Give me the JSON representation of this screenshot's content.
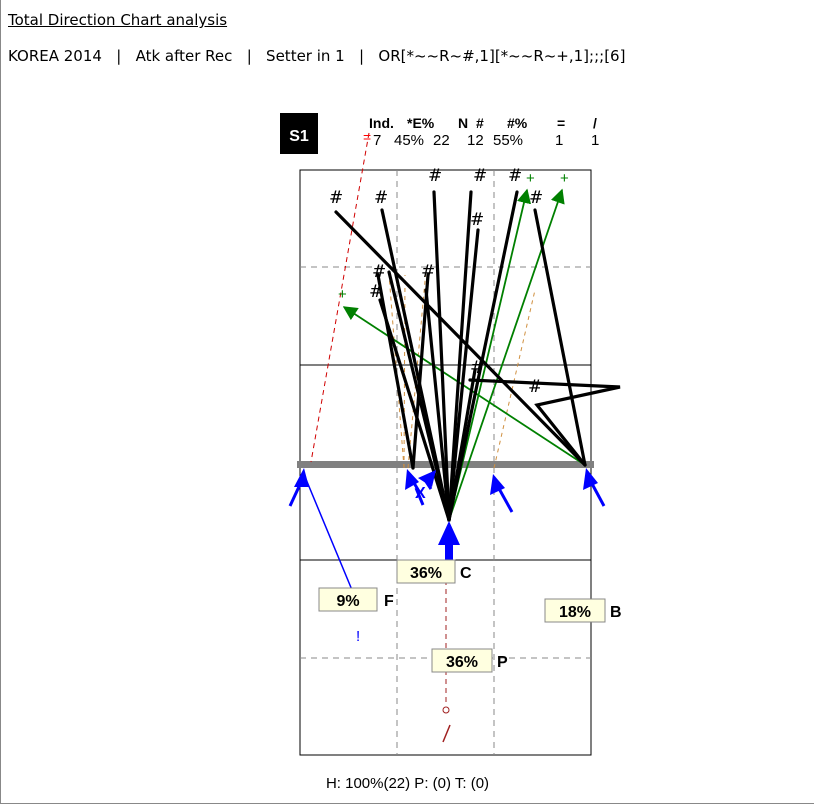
{
  "title": "Total Direction Chart analysis",
  "subtitle": "KOREA 2014   |   Atk after Rec   |   Setter in 1   |   OR[*~~R~#,1][*~~R~+,1];;;[6]",
  "stats": {
    "badge": "S1",
    "headers": [
      "Ind.",
      "*E%",
      "N",
      "#",
      "#%",
      "=",
      "/"
    ],
    "values": [
      "7",
      "45%",
      "22",
      "12",
      "55%",
      "1",
      "1"
    ]
  },
  "zones": {
    "C": {
      "pct": "36%",
      "letter": "C"
    },
    "F": {
      "pct": "9%",
      "letter": "F"
    },
    "B": {
      "pct": "18%",
      "letter": "B"
    },
    "P": {
      "pct": "36%",
      "letter": "P"
    }
  },
  "footer": "H: 100%(22)  P: (0)  T: (0)",
  "colors": {
    "winning": "#000000",
    "positive": "#008000",
    "error": "#0000ff",
    "setter": "#c00000",
    "arrow": "#0000ff",
    "net": "#808080"
  }
}
